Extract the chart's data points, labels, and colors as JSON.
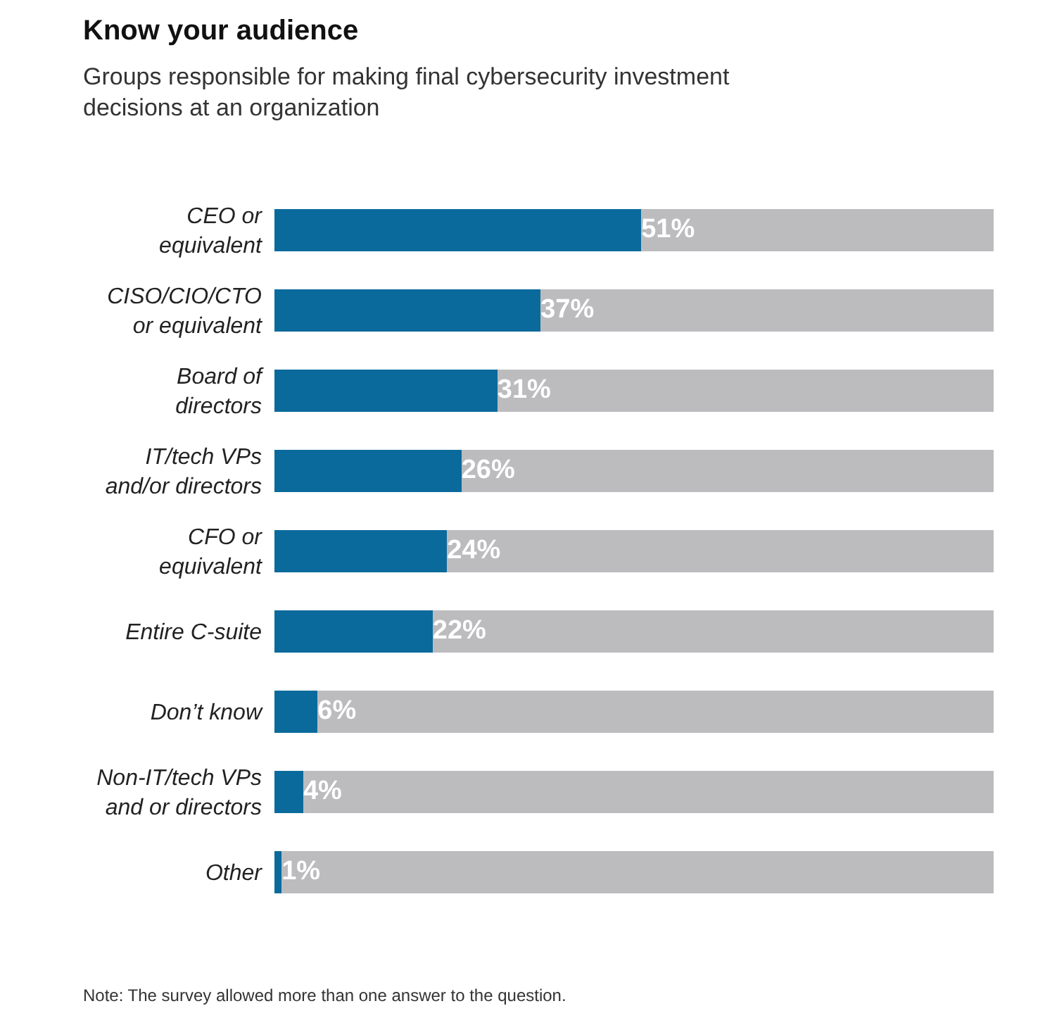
{
  "chart_data": {
    "type": "bar",
    "orientation": "horizontal",
    "stacked": true,
    "title": "Know your audience",
    "subtitle": "Groups responsible for making final cybersecurity investment\ndecisions at an organization",
    "categories": [
      "CEO or\nequivalent",
      "CISO/CIO/CTO\nor equivalent",
      "Board of\ndirectors",
      "IT/tech VPs\nand/or directors",
      "CFO or\nequivalent",
      "Entire C-suite",
      "Don’t know",
      "Non-IT/tech VPs\nand or directors",
      "Other"
    ],
    "series": [
      {
        "color": "#0a6a9c",
        "values": [
          51,
          37,
          31,
          26,
          24,
          22,
          6,
          4,
          1
        ],
        "value_labels": [
          "51%",
          "37%",
          "31%",
          "26%",
          "24%",
          "22%",
          "6%",
          "4%",
          "1%"
        ]
      },
      {
        "color": "#bcbcbf",
        "values": [
          49,
          63,
          69,
          74,
          76,
          78,
          94,
          96,
          99
        ]
      }
    ],
    "xlim": [
      0,
      100
    ],
    "tick_labels": "y",
    "annotations": [
      "Note: The survey allowed more than one answer to the question."
    ]
  }
}
